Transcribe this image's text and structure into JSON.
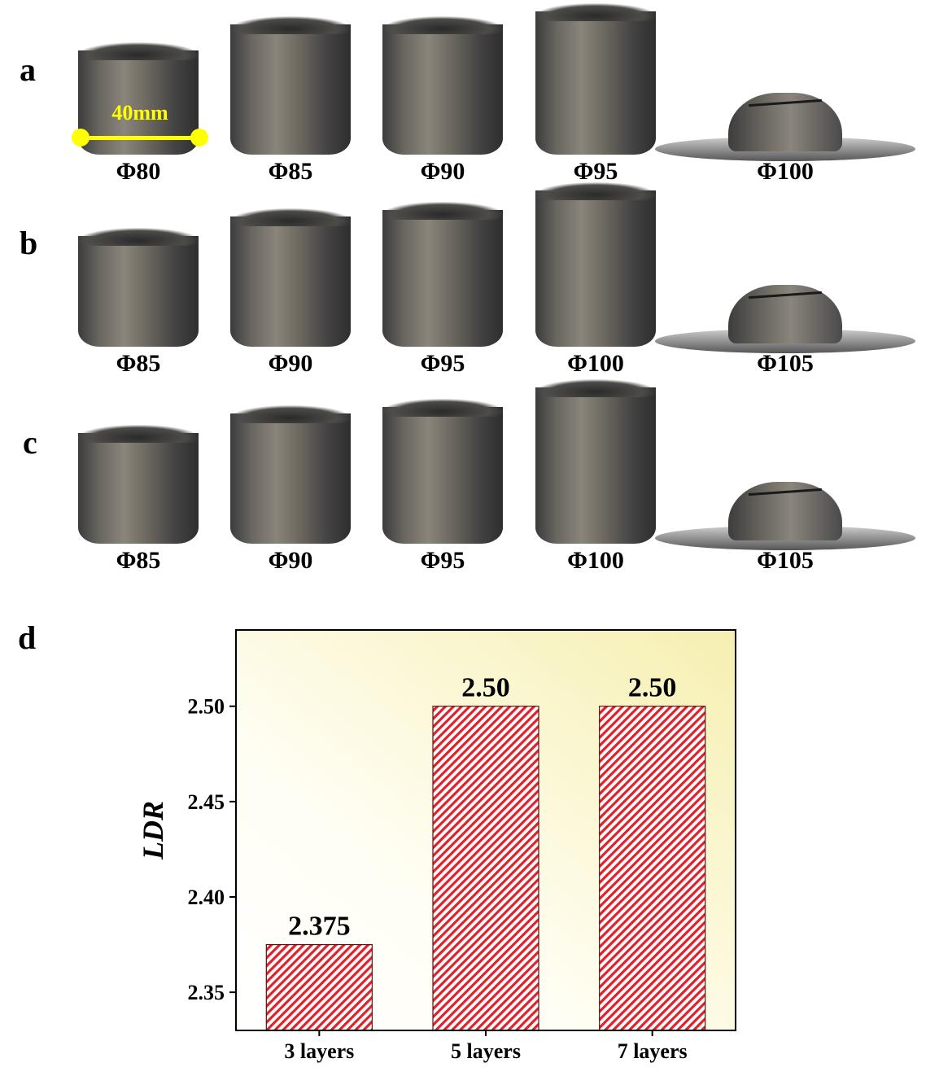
{
  "panels": [
    {
      "label": "a",
      "specimens": [
        {
          "label": "Φ80",
          "form": "cup",
          "height": 0.8
        },
        {
          "label": "Φ85",
          "form": "cup",
          "height": 1.0
        },
        {
          "label": "Φ90",
          "form": "cup",
          "height": 1.0
        },
        {
          "label": "Φ95",
          "form": "cup",
          "height": 1.1
        },
        {
          "label": "Φ100",
          "form": "fractured"
        }
      ],
      "scale_bar": "40mm"
    },
    {
      "label": "b",
      "specimens": [
        {
          "label": "Φ85",
          "form": "cup",
          "height": 0.85
        },
        {
          "label": "Φ90",
          "form": "cup",
          "height": 1.0
        },
        {
          "label": "Φ95",
          "form": "cup",
          "height": 1.05
        },
        {
          "label": "Φ100",
          "form": "cup",
          "height": 1.2
        },
        {
          "label": "Φ105",
          "form": "fractured"
        }
      ]
    },
    {
      "label": "c",
      "specimens": [
        {
          "label": "Φ85",
          "form": "cup",
          "height": 0.85
        },
        {
          "label": "Φ90",
          "form": "cup",
          "height": 1.0
        },
        {
          "label": "Φ95",
          "form": "cup",
          "height": 1.05
        },
        {
          "label": "Φ100",
          "form": "cup",
          "height": 1.2
        },
        {
          "label": "Φ105",
          "form": "fractured"
        }
      ]
    }
  ],
  "chart_data": {
    "panel_label": "d",
    "type": "bar",
    "categories": [
      "3 layers",
      "5 layers",
      "7 layers"
    ],
    "values": [
      2.375,
      2.5,
      2.5
    ],
    "data_labels": [
      "2.375",
      "2.50",
      "2.50"
    ],
    "xlabel": "",
    "ylabel": "LDR",
    "ylim": [
      2.33,
      2.54
    ],
    "yticks": [
      2.35,
      2.4,
      2.45,
      2.5
    ],
    "ytick_labels": [
      "2.35",
      "2.40",
      "2.45",
      "2.50"
    ],
    "grid": false,
    "bar_fill": "hatched",
    "bar_color": "#e0202a",
    "background_gradient": [
      "#ffffff",
      "#f6efb0"
    ]
  }
}
